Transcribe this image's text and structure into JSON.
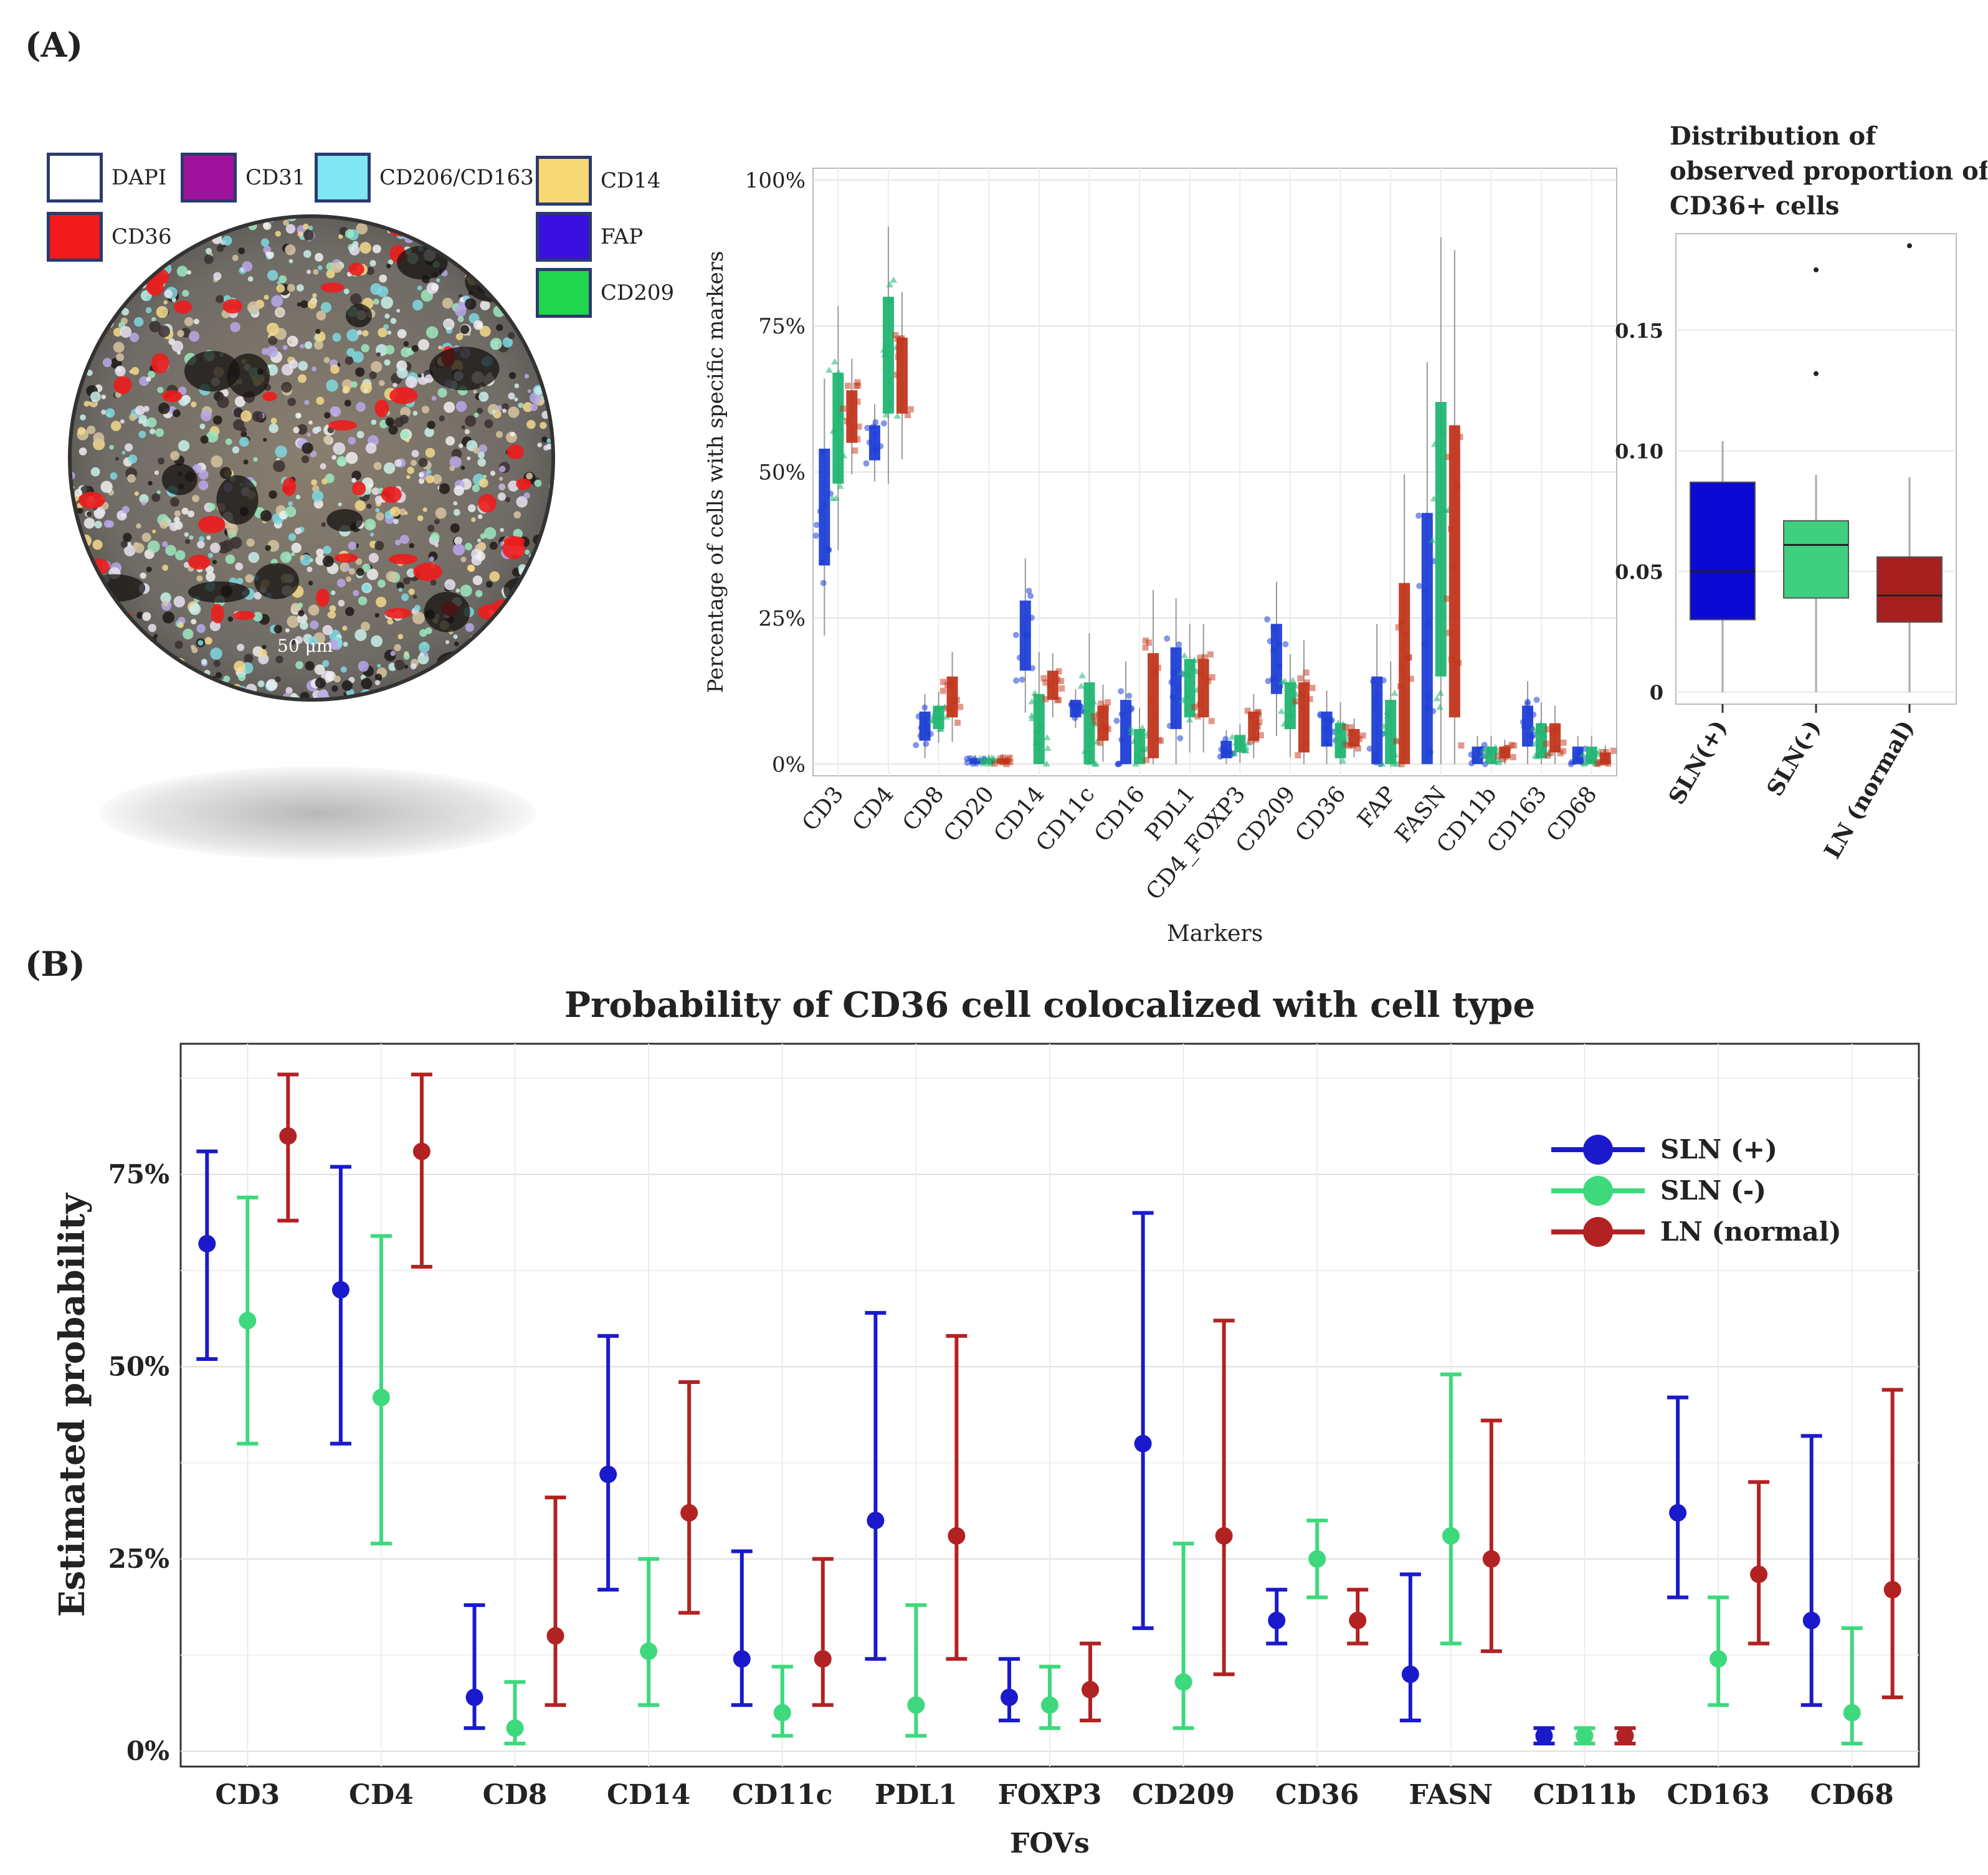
{
  "panel_a": {
    "label": "(A)",
    "legend": [
      {
        "name": "DAPI",
        "color": "#ffffff"
      },
      {
        "name": "CD31",
        "color": "#a0129c"
      },
      {
        "name": "CD206/CD163",
        "color": "#7fe6f2"
      },
      {
        "name": "CD14",
        "color": "#f8d874"
      },
      {
        "name": "CD36",
        "color": "#f21a1a"
      },
      {
        "name": "FAP",
        "color": "#3a10e0"
      },
      {
        "name": "CD209",
        "color": "#1fd64e"
      }
    ],
    "scale_bar": "50 μm"
  },
  "panel_b": {
    "label": "(B)"
  },
  "colors": {
    "sln_pos": "#1a1acc",
    "sln_neg": "#3dd97c",
    "ln_normal": "#b22222",
    "box_pos": "#1f3fd6",
    "box_neg": "#21b572",
    "box_ln": "#c1361c"
  },
  "chart_data": [
    {
      "type": "box",
      "title": "",
      "xlabel": "Markers",
      "ylabel": "Percentage of cells with specific markers",
      "ylim": [
        0,
        100
      ],
      "yticks": [
        "0%",
        "25%",
        "50%",
        "75%",
        "100%"
      ],
      "categories": [
        "CD3",
        "CD4",
        "CD8",
        "CD20",
        "CD14",
        "CD11c",
        "CD16",
        "PDL1",
        "CD4_FOXP3",
        "CD209",
        "CD36",
        "FAP",
        "FASN",
        "CD11b",
        "CD163",
        "CD68"
      ],
      "series": [
        {
          "name": "SLN(+)",
          "boxes": [
            [
              34,
              54
            ],
            [
              52,
              58
            ],
            [
              4,
              9
            ],
            [
              0,
              1
            ],
            [
              16,
              28
            ],
            [
              8,
              11
            ],
            [
              0,
              11
            ],
            [
              6,
              20
            ],
            [
              1,
              4
            ],
            [
              12,
              24
            ],
            [
              3,
              9
            ],
            [
              0,
              15
            ],
            [
              0,
              43
            ],
            [
              0,
              3
            ],
            [
              3,
              10
            ],
            [
              0,
              3
            ]
          ]
        },
        {
          "name": "SLN(-)",
          "boxes": [
            [
              48,
              67
            ],
            [
              60,
              80
            ],
            [
              6,
              10
            ],
            [
              0,
              1
            ],
            [
              0,
              12
            ],
            [
              0,
              14
            ],
            [
              0,
              6
            ],
            [
              8,
              18
            ],
            [
              2,
              5
            ],
            [
              6,
              14
            ],
            [
              1,
              7
            ],
            [
              0,
              11
            ],
            [
              15,
              62
            ],
            [
              0,
              3
            ],
            [
              1,
              7
            ],
            [
              0,
              3
            ]
          ]
        },
        {
          "name": "LN (normal)",
          "boxes": [
            [
              55,
              64
            ],
            [
              60,
              73
            ],
            [
              8,
              15
            ],
            [
              0,
              1
            ],
            [
              11,
              16
            ],
            [
              4,
              10
            ],
            [
              1,
              19
            ],
            [
              8,
              18
            ],
            [
              4,
              9
            ],
            [
              2,
              14
            ],
            [
              3,
              6
            ],
            [
              0,
              31
            ],
            [
              8,
              58
            ],
            [
              1,
              3
            ],
            [
              2,
              7
            ],
            [
              0,
              2
            ]
          ]
        }
      ]
    },
    {
      "type": "box",
      "title": "Distribution of observed proportion of CD36+ cells",
      "xlabel": "",
      "ylabel": "",
      "ylim": [
        -0.005,
        0.19
      ],
      "yticks": [
        "0",
        "0.05",
        "0.10",
        "0.15"
      ],
      "categories": [
        "SLN(+)",
        "SLN(-)",
        "LN (normal)"
      ],
      "boxes": [
        {
          "q1": 0.03,
          "median": 0.05,
          "q3": 0.087,
          "min": 0.0,
          "max": 0.104,
          "outliers": []
        },
        {
          "q1": 0.039,
          "median": 0.061,
          "q3": 0.071,
          "min": 0.0,
          "max": 0.09,
          "outliers": [
            0.132,
            0.175
          ]
        },
        {
          "q1": 0.029,
          "median": 0.04,
          "q3": 0.056,
          "min": 0.0,
          "max": 0.089,
          "outliers": [
            0.185
          ]
        }
      ]
    },
    {
      "type": "errorbar",
      "title": "Probability of CD36 cell colocalized with cell type",
      "xlabel": "FOVs",
      "ylabel": "Estimated probability",
      "ylim": [
        -2,
        92
      ],
      "yticks": [
        "0%",
        "25%",
        "50%",
        "75%"
      ],
      "categories": [
        "CD3",
        "CD4",
        "CD8",
        "CD14",
        "CD11c",
        "PDL1",
        "FOXP3",
        "CD209",
        "CD36",
        "FASN",
        "CD11b",
        "CD163",
        "CD68"
      ],
      "legend": [
        "SLN (+)",
        "SLN (-)",
        "LN (normal)"
      ],
      "series": [
        {
          "name": "SLN (+)",
          "points": [
            [
              66,
              51,
              78
            ],
            [
              60,
              40,
              76
            ],
            [
              7,
              3,
              19
            ],
            [
              36,
              21,
              54
            ],
            [
              12,
              6,
              26
            ],
            [
              30,
              12,
              57
            ],
            [
              7,
              4,
              12
            ],
            [
              40,
              16,
              70
            ],
            [
              17,
              14,
              21
            ],
            [
              10,
              4,
              23
            ],
            [
              2,
              1,
              3
            ],
            [
              31,
              20,
              46
            ],
            [
              17,
              6,
              41
            ]
          ]
        },
        {
          "name": "SLN (-)",
          "points": [
            [
              56,
              40,
              72
            ],
            [
              46,
              27,
              67
            ],
            [
              3,
              1,
              9
            ],
            [
              13,
              6,
              25
            ],
            [
              5,
              2,
              11
            ],
            [
              6,
              2,
              19
            ],
            [
              6,
              3,
              11
            ],
            [
              9,
              3,
              27
            ],
            [
              25,
              20,
              30
            ],
            [
              28,
              14,
              49
            ],
            [
              2,
              1,
              3
            ],
            [
              12,
              6,
              20
            ],
            [
              5,
              1,
              16
            ]
          ]
        },
        {
          "name": "LN (normal)",
          "points": [
            [
              80,
              69,
              88
            ],
            [
              78,
              63,
              88
            ],
            [
              15,
              6,
              33
            ],
            [
              31,
              18,
              48
            ],
            [
              12,
              6,
              25
            ],
            [
              28,
              12,
              54
            ],
            [
              8,
              4,
              14
            ],
            [
              28,
              10,
              56
            ],
            [
              17,
              14,
              21
            ],
            [
              25,
              13,
              43
            ],
            [
              2,
              1,
              3
            ],
            [
              23,
              14,
              35
            ],
            [
              21,
              7,
              47
            ]
          ]
        }
      ]
    }
  ]
}
